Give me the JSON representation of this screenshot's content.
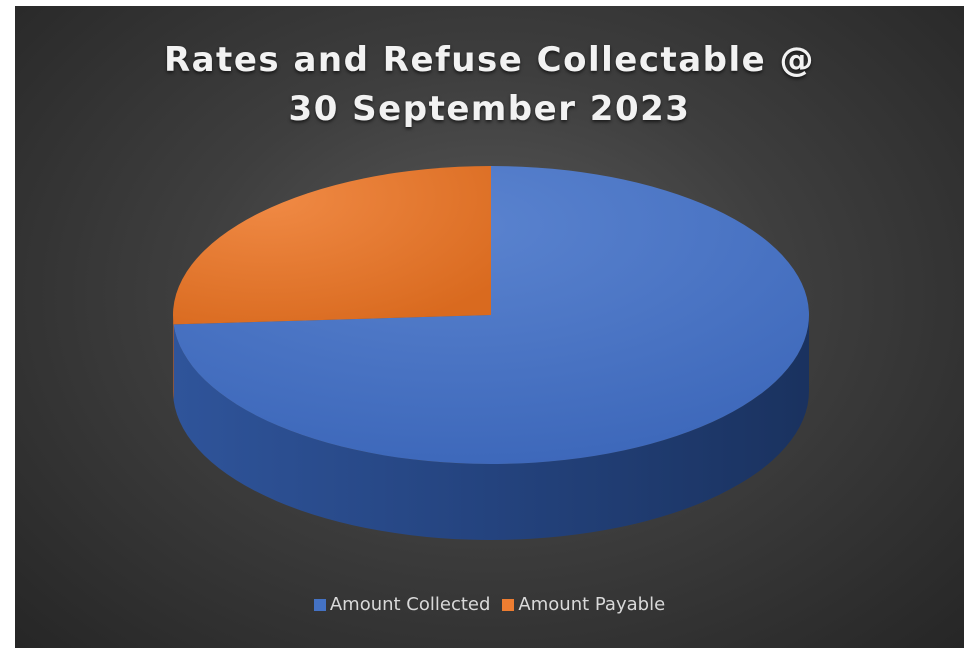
{
  "chart_data": {
    "type": "pie",
    "title": "Rates and Refuse Collectable @ 30 September 2023",
    "title_lines": [
      "Rates and Refuse Collectable @",
      "30 September 2023"
    ],
    "categories": [
      "Amount Collected",
      "Amount Payable"
    ],
    "values": [
      74,
      26
    ],
    "colors": [
      "#4472c4",
      "#ed7d31"
    ],
    "legend_position": "bottom",
    "style": "3d"
  }
}
